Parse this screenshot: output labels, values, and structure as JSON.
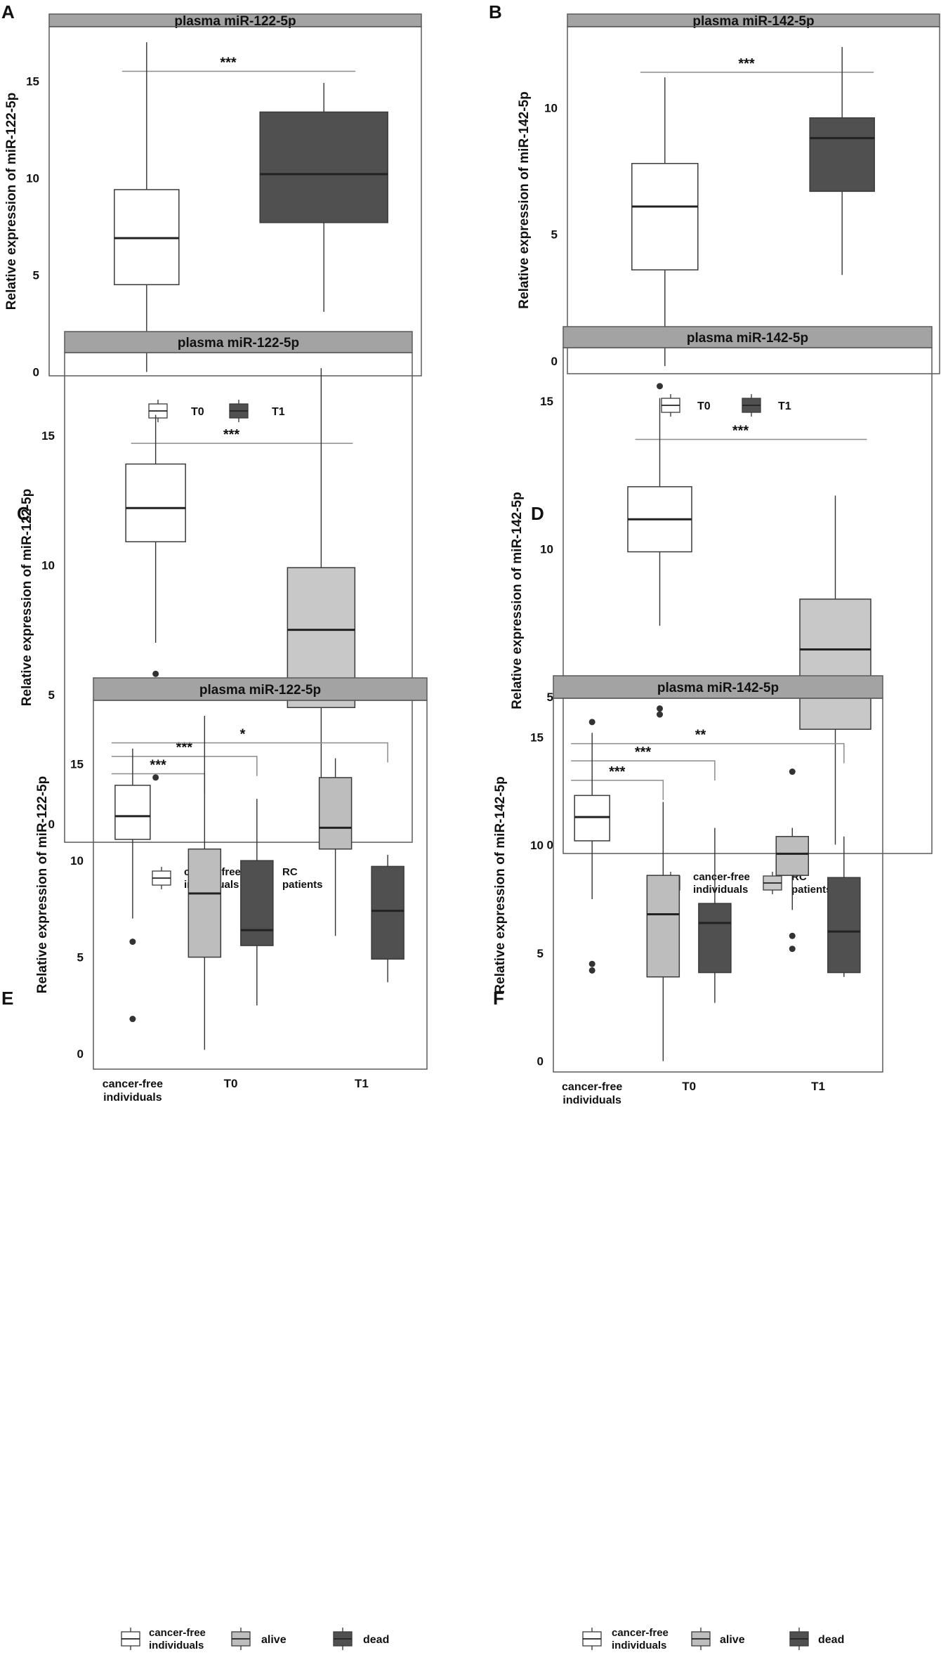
{
  "figure": {
    "colors": {
      "strip_fill": "#a3a3a3",
      "strip_border": "#5a5a5a",
      "panel_border": "#5a5a5a",
      "whisker": "#333333",
      "sig_line": "#8c8c8c",
      "text": "#111111"
    }
  },
  "chart_data": [
    {
      "panel_label": "A",
      "type": "box",
      "title": "plasma miR-122-5p",
      "ylabel": "Relative expression of miR-122-5p",
      "ylim": [
        -0.2,
        17.8
      ],
      "yticks": [
        0,
        5,
        10,
        15
      ],
      "x_tick_labels": [],
      "boxes": [
        {
          "group": "T0",
          "fill": "#ffffff",
          "whisker_low": 0,
          "q1": 4.5,
          "median": 6.9,
          "q3": 9.4,
          "whisker_high": 17,
          "outliers": []
        },
        {
          "group": "T1",
          "fill": "#505050",
          "whisker_low": 3.1,
          "q1": 7.7,
          "median": 10.2,
          "q3": 13.4,
          "whisker_high": 14.9,
          "outliers": []
        }
      ],
      "significance": [
        {
          "label": "***",
          "y": 15.5,
          "from": 0,
          "to": 1,
          "bracket": false
        }
      ],
      "legend": [
        {
          "label": "T0",
          "fill": "#ffffff"
        },
        {
          "label": "T1",
          "fill": "#505050"
        }
      ]
    },
    {
      "panel_label": "B",
      "type": "box",
      "title": "plasma miR-142-5p",
      "ylabel": "Relative expression of miR-142-5p",
      "ylim": [
        -0.5,
        13.2
      ],
      "yticks": [
        0,
        5,
        10
      ],
      "x_tick_labels": [],
      "boxes": [
        {
          "group": "T0",
          "fill": "#ffffff",
          "whisker_low": -0.2,
          "q1": 3.6,
          "median": 6.1,
          "q3": 7.8,
          "whisker_high": 11.2,
          "outliers": []
        },
        {
          "group": "T1",
          "fill": "#505050",
          "whisker_low": 3.4,
          "q1": 6.7,
          "median": 8.8,
          "q3": 9.6,
          "whisker_high": 12.4,
          "outliers": []
        }
      ],
      "significance": [
        {
          "label": "***",
          "y": 11.4,
          "from": 0,
          "to": 1,
          "bracket": false
        }
      ],
      "legend": [
        {
          "label": "T0",
          "fill": "#ffffff"
        },
        {
          "label": "T1",
          "fill": "#505050"
        }
      ]
    },
    {
      "panel_label": "C",
      "type": "box",
      "title": "plasma miR-122-5p",
      "ylabel": "Relative expression of miR-122-5p",
      "ylim": [
        -0.7,
        18.2
      ],
      "yticks": [
        0,
        5,
        10,
        15
      ],
      "x_tick_labels": [],
      "boxes": [
        {
          "group": "cancer-free individuals",
          "fill": "#ffffff",
          "whisker_low": 7.0,
          "q1": 10.9,
          "median": 12.2,
          "q3": 13.9,
          "whisker_high": 15.8,
          "outliers": [
            5.8,
            1.8
          ]
        },
        {
          "group": "RC patients",
          "fill": "#c8c8c8",
          "whisker_low": 0.2,
          "q1": 4.5,
          "median": 7.5,
          "q3": 9.9,
          "whisker_high": 17.6,
          "outliers": []
        }
      ],
      "significance": [
        {
          "label": "***",
          "y": 14.7,
          "from": 0,
          "to": 1,
          "bracket": false
        }
      ],
      "legend": [
        {
          "label": "cancer-free individuals",
          "fill": "#ffffff"
        },
        {
          "label": "RC patients",
          "fill": "#c8c8c8"
        }
      ]
    },
    {
      "panel_label": "D",
      "type": "box",
      "title": "plasma miR-142-5p",
      "ylabel": "Relative expression of miR-142-5p",
      "ylim": [
        -0.3,
        16.8
      ],
      "yticks": [
        0,
        5,
        10,
        15
      ],
      "x_tick_labels": [],
      "boxes": [
        {
          "group": "cancer-free individuals",
          "fill": "#ffffff",
          "whisker_low": 7.4,
          "q1": 9.9,
          "median": 11.0,
          "q3": 12.1,
          "whisker_high": 15.1,
          "outliers": [
            15.5,
            4.6,
            4.4
          ]
        },
        {
          "group": "RC patients",
          "fill": "#c8c8c8",
          "whisker_low": 0,
          "q1": 3.9,
          "median": 6.6,
          "q3": 8.3,
          "whisker_high": 11.8,
          "outliers": []
        }
      ],
      "significance": [
        {
          "label": "***",
          "y": 13.7,
          "from": 0,
          "to": 1,
          "bracket": false
        }
      ],
      "legend": [
        {
          "label": "cancer-free individuals",
          "fill": "#ffffff"
        },
        {
          "label": "RC patients",
          "fill": "#c8c8c8"
        }
      ]
    },
    {
      "panel_label": "E",
      "type": "box",
      "title": "plasma miR-122-5p",
      "ylabel": "Relative expression of miR-122-5p",
      "ylim": [
        -0.8,
        18.3
      ],
      "yticks": [
        0,
        5,
        10,
        15
      ],
      "x_tick_labels": [
        {
          "label": "cancer-free individuals",
          "pos": 1
        },
        {
          "label": "T0",
          "pos": 2.5
        },
        {
          "label": "T1",
          "pos": 4.5
        }
      ],
      "boxes": [
        {
          "group": "cancer-free individuals",
          "pos": 1,
          "fill": "#ffffff",
          "whisker_low": 7.0,
          "q1": 11.1,
          "median": 12.3,
          "q3": 13.9,
          "whisker_high": 15.8,
          "outliers": [
            5.8,
            1.8
          ]
        },
        {
          "group": "T0 alive",
          "pos": 2.1,
          "fill": "#bdbdbd",
          "whisker_low": 0.2,
          "q1": 5.0,
          "median": 8.3,
          "q3": 10.6,
          "whisker_high": 17.5,
          "outliers": []
        },
        {
          "group": "T0 dead",
          "pos": 2.9,
          "fill": "#505050",
          "whisker_low": 2.5,
          "q1": 5.6,
          "median": 6.4,
          "q3": 10.0,
          "whisker_high": 13.2,
          "outliers": []
        },
        {
          "group": "T1 alive",
          "pos": 4.1,
          "fill": "#bdbdbd",
          "whisker_low": 6.1,
          "q1": 10.6,
          "median": 11.7,
          "q3": 14.3,
          "whisker_high": 15.3,
          "outliers": []
        },
        {
          "group": "T1 dead",
          "pos": 4.9,
          "fill": "#505050",
          "whisker_low": 3.7,
          "q1": 4.9,
          "median": 7.4,
          "q3": 9.7,
          "whisker_high": 10.3,
          "outliers": []
        }
      ],
      "significance": [
        {
          "label": "***",
          "y": 14.5,
          "from": 1,
          "to": 2.1,
          "bracket": true
        },
        {
          "label": "***",
          "y": 15.4,
          "from": 1,
          "to": 2.9,
          "bracket": true
        },
        {
          "label": "*",
          "y": 16.1,
          "from": 1,
          "to": 4.9,
          "bracket": true
        }
      ],
      "legend": [
        {
          "label": "cancer-free individuals",
          "fill": "#ffffff"
        },
        {
          "label": "alive",
          "fill": "#bdbdbd"
        },
        {
          "label": "dead",
          "fill": "#505050"
        }
      ]
    },
    {
      "panel_label": "F",
      "type": "box",
      "title": "plasma miR-142-5p",
      "ylabel": "Relative expression of miR-142-5p",
      "ylim": [
        -0.5,
        16.8
      ],
      "yticks": [
        0,
        5,
        10,
        15
      ],
      "x_tick_labels": [
        {
          "label": "cancer-free individuals",
          "pos": 1
        },
        {
          "label": "T0",
          "pos": 2.5
        },
        {
          "label": "T1",
          "pos": 4.5
        }
      ],
      "boxes": [
        {
          "group": "cancer-free individuals",
          "pos": 1,
          "fill": "#ffffff",
          "whisker_low": 7.5,
          "q1": 10.2,
          "median": 11.3,
          "q3": 12.3,
          "whisker_high": 15.2,
          "outliers": [
            15.7,
            4.5,
            4.2
          ]
        },
        {
          "group": "T0 alive",
          "pos": 2.1,
          "fill": "#bdbdbd",
          "whisker_low": 0,
          "q1": 3.9,
          "median": 6.8,
          "q3": 8.6,
          "whisker_high": 12.0,
          "outliers": []
        },
        {
          "group": "T0 dead",
          "pos": 2.9,
          "fill": "#505050",
          "whisker_low": 2.7,
          "q1": 4.1,
          "median": 6.4,
          "q3": 7.3,
          "whisker_high": 10.8,
          "outliers": []
        },
        {
          "group": "T1 alive",
          "pos": 4.1,
          "fill": "#bdbdbd",
          "whisker_low": 7.0,
          "q1": 8.6,
          "median": 9.6,
          "q3": 10.4,
          "whisker_high": 10.8,
          "outliers": [
            13.4,
            5.8,
            5.2
          ]
        },
        {
          "group": "T1 dead",
          "pos": 4.9,
          "fill": "#505050",
          "whisker_low": 3.9,
          "q1": 4.1,
          "median": 6.0,
          "q3": 8.5,
          "whisker_high": 10.4,
          "outliers": []
        }
      ],
      "significance": [
        {
          "label": "***",
          "y": 13.0,
          "from": 1,
          "to": 2.1,
          "bracket": true
        },
        {
          "label": "***",
          "y": 13.9,
          "from": 1,
          "to": 2.9,
          "bracket": true
        },
        {
          "label": "**",
          "y": 14.7,
          "from": 1,
          "to": 4.9,
          "bracket": true
        }
      ],
      "legend": [
        {
          "label": "cancer-free individuals",
          "fill": "#ffffff"
        },
        {
          "label": "alive",
          "fill": "#bdbdbd"
        },
        {
          "label": "dead",
          "fill": "#505050"
        }
      ]
    }
  ]
}
